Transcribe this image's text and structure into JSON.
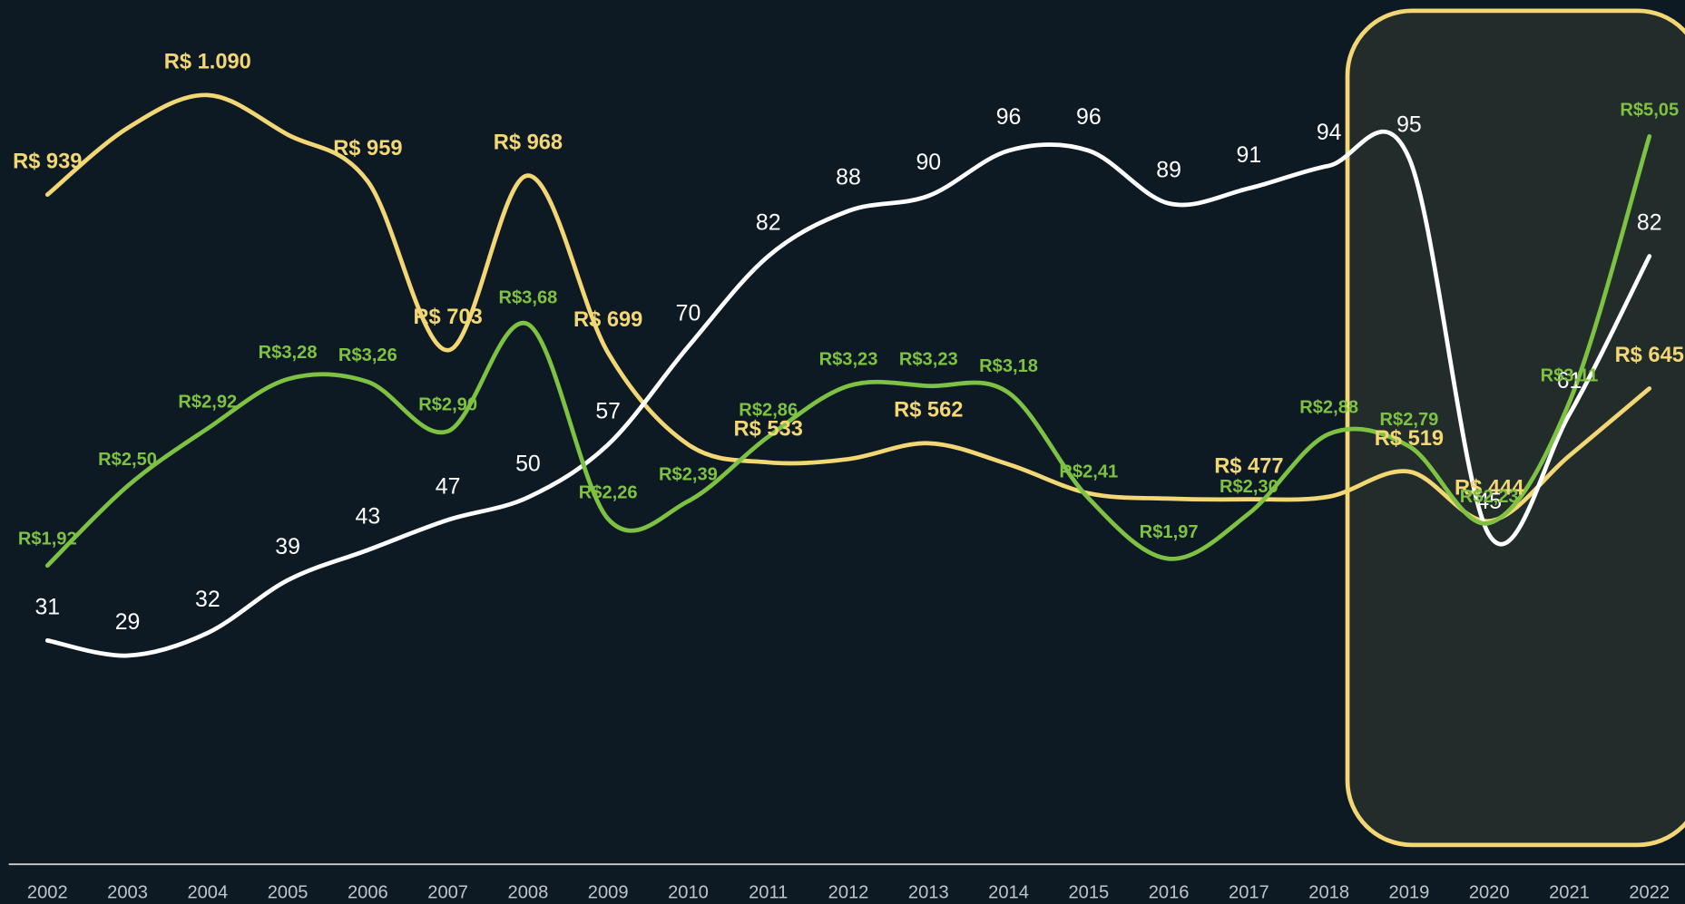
{
  "chart_data": {
    "type": "line",
    "categories": [
      "2002",
      "2003",
      "2004",
      "2005",
      "2006",
      "2007",
      "2008",
      "2009",
      "2010",
      "2011",
      "2012",
      "2013",
      "2014",
      "2015",
      "2016",
      "2017",
      "2018",
      "2019",
      "2020",
      "2021",
      "2022"
    ],
    "series": [
      {
        "color": "#f2d774",
        "ylim": [
          0,
          1200
        ],
        "values": [
          939,
          1040,
          1090,
          1030,
          959,
          703,
          968,
          699,
          560,
          533,
          538,
          562,
          530,
          486,
          478,
          477,
          481,
          519,
          444,
          543,
          645
        ],
        "value_labels": [
          "R$ 939",
          null,
          "R$ 1.090",
          null,
          "R$ 959",
          "R$ 703",
          "R$ 968",
          "R$ 699",
          null,
          "R$ 533",
          null,
          "R$ 562",
          null,
          null,
          null,
          "R$ 477",
          null,
          "R$ 519",
          "R$ 444",
          null,
          "R$ 645"
        ]
      },
      {
        "color": "#ffffff",
        "ylim": [
          8,
          113
        ],
        "values": [
          31,
          29,
          32,
          39,
          43,
          47,
          50,
          57,
          70,
          82,
          88,
          90,
          96,
          96,
          89,
          91,
          94,
          95,
          45,
          61,
          82
        ]
      },
      {
        "color": "#7dc242",
        "ylim": [
          0.11,
          5.88
        ],
        "values": [
          1.92,
          2.5,
          2.92,
          3.28,
          3.26,
          2.9,
          3.68,
          2.26,
          2.39,
          2.86,
          3.23,
          3.23,
          3.18,
          2.41,
          1.97,
          2.3,
          2.88,
          2.79,
          2.23,
          3.11,
          5.05
        ],
        "value_labels": [
          "R$1,92",
          "R$2,50",
          "R$2,92",
          "R$3,28",
          "R$3,26",
          "R$2,90",
          "R$3,68",
          "R$2,26",
          "R$2,39",
          "R$2,86",
          "R$3,23",
          "R$3,23",
          "R$3,18",
          "R$2,41",
          "R$1,97",
          "R$2,30",
          "R$2,88",
          "R$2,79",
          "R$2,23",
          "R$3,11",
          "R$5,05"
        ]
      }
    ]
  }
}
